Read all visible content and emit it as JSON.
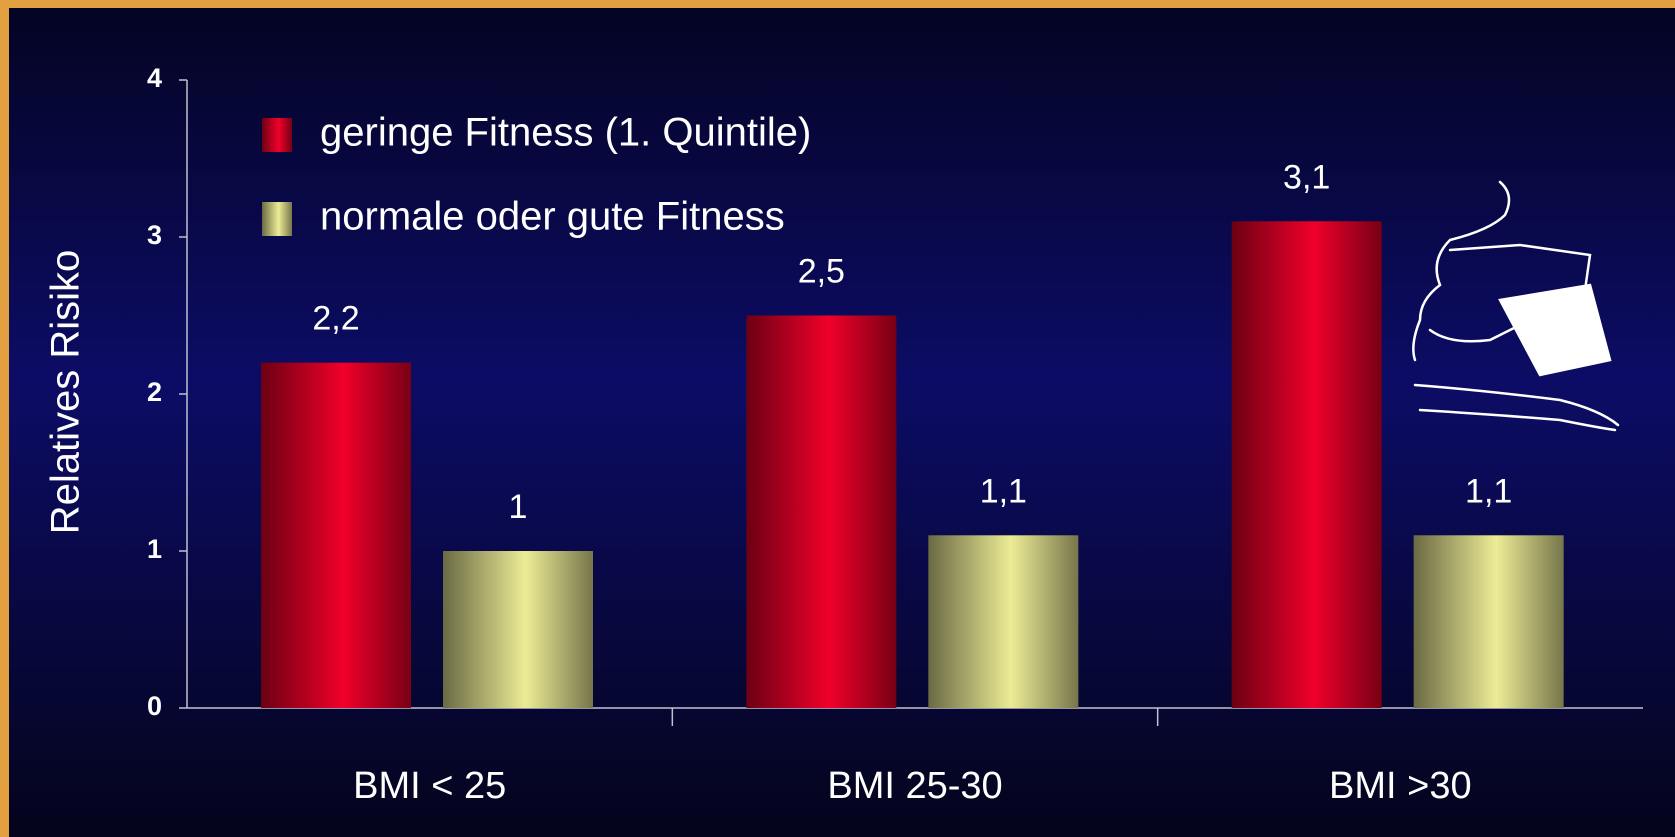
{
  "chart_data": {
    "type": "bar",
    "y_label": "Relatives Risiko",
    "categories": [
      "BMI < 25",
      "BMI 25-30",
      "BMI >30"
    ],
    "series": [
      {
        "name": "geringe Fitness (1. Quintile)",
        "color": "#f0002a",
        "values": [
          2.2,
          2.5,
          3.1
        ],
        "value_labels": [
          "2,2",
          "2,5",
          "3,1"
        ]
      },
      {
        "name": "normale oder gute Fitness",
        "color": "#ecec96",
        "values": [
          1,
          1.1,
          1.1
        ],
        "value_labels": [
          "1",
          "1,1",
          "1,1"
        ]
      }
    ],
    "ylim": [
      0,
      4
    ],
    "yticks": [
      0,
      1,
      2,
      3,
      4
    ],
    "legend": "top-left"
  }
}
